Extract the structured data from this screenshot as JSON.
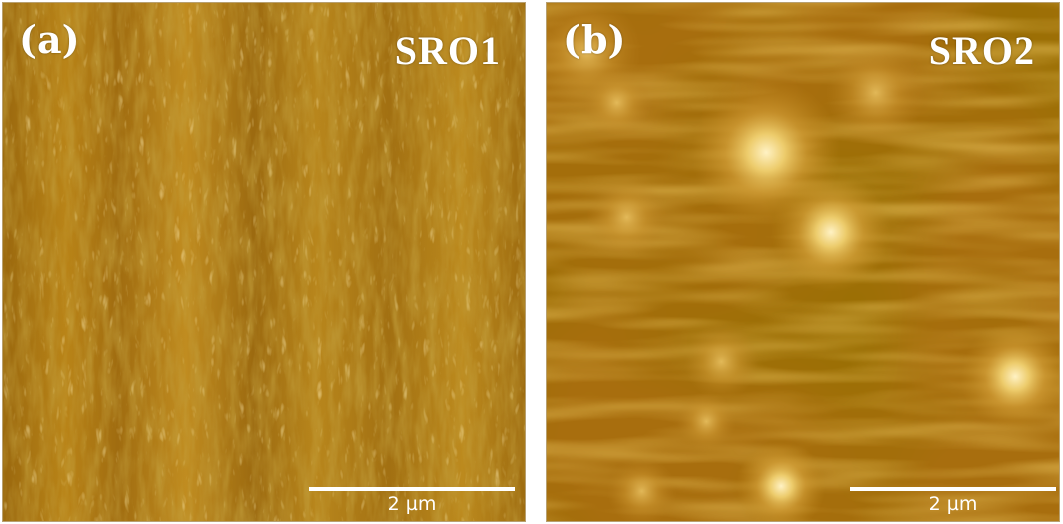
{
  "panels": [
    {
      "letter": "(a)",
      "name": "SRO1",
      "scale_label": "2 µm"
    },
    {
      "letter": "(b)",
      "name": "SRO2",
      "scale_label": "2 µm"
    }
  ],
  "colors": {
    "panel_a_base": "#a87414",
    "panel_a_highlight": "#e8c060",
    "panel_a_shadow": "#4a2c04",
    "panel_b_base": "#a26a0c",
    "panel_b_highlight": "#f2e0a0",
    "text": "#ffffff"
  }
}
